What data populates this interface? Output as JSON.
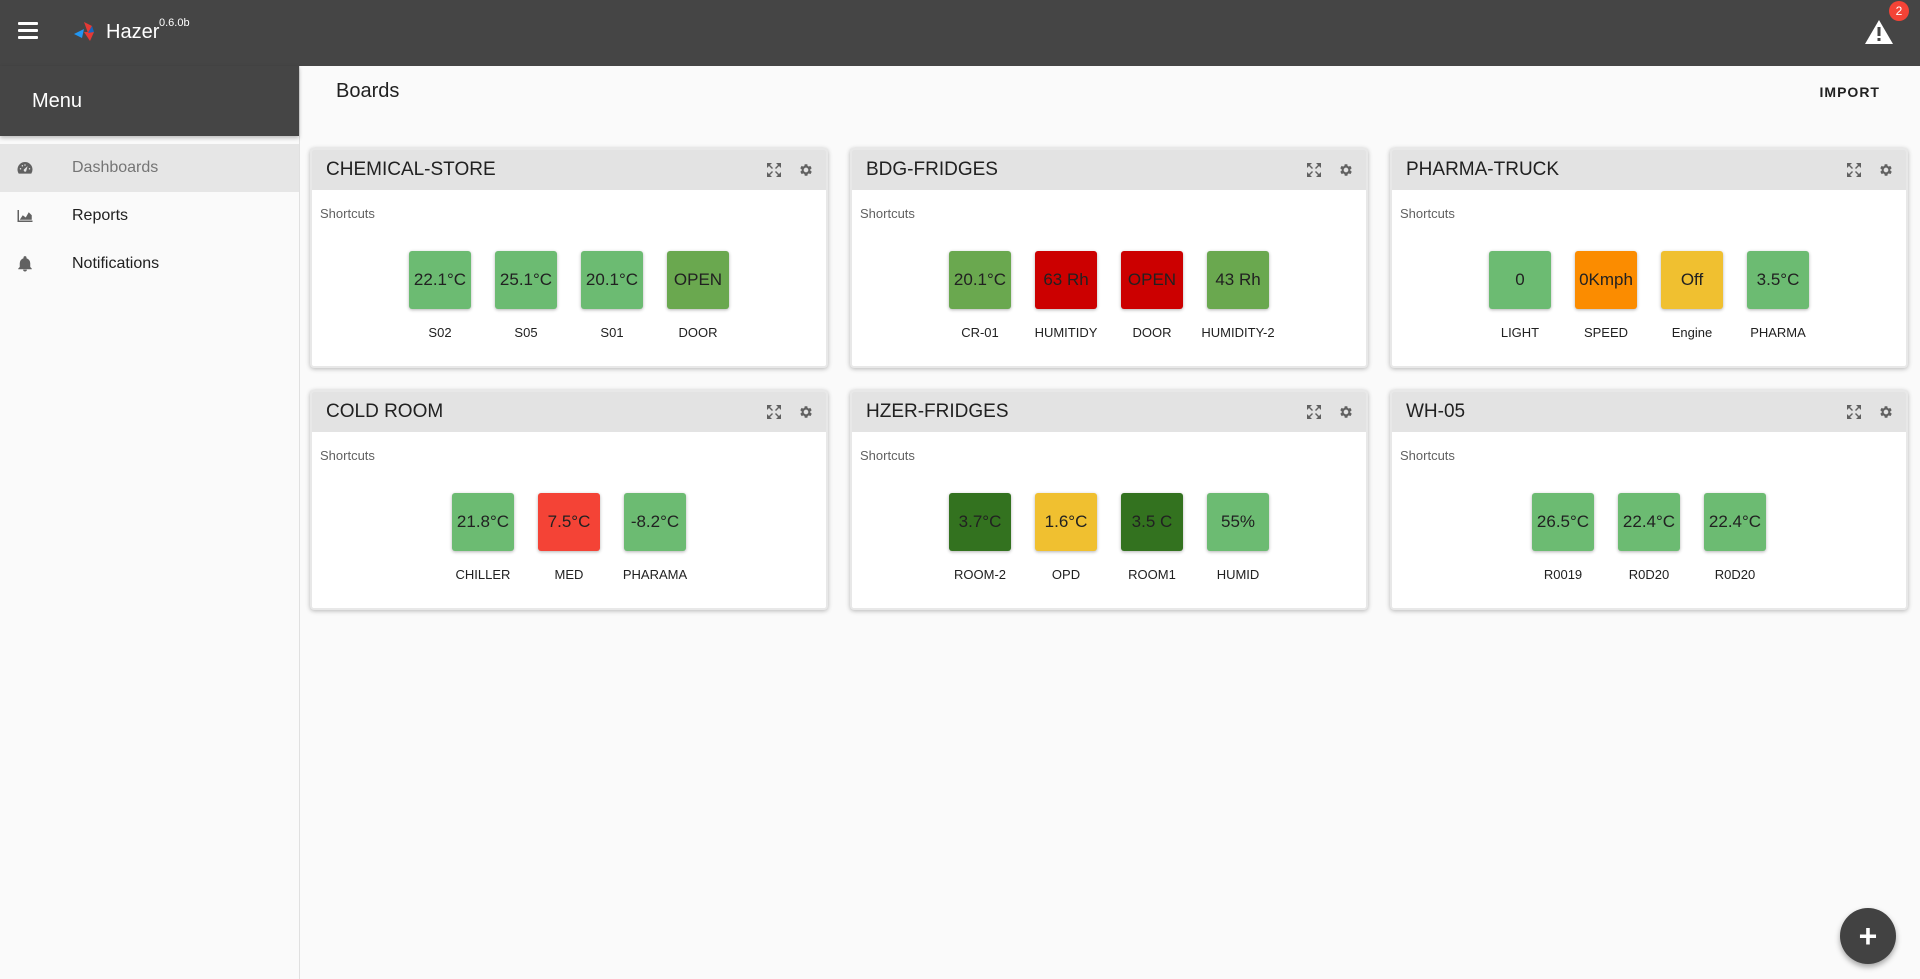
{
  "app": {
    "title": "Hazer",
    "version": "0.6.0b",
    "alert_count": "2"
  },
  "sidebar": {
    "menu_title": "Menu",
    "items": [
      {
        "label": "Dashboards",
        "icon": "dashboard-icon",
        "active": true
      },
      {
        "label": "Reports",
        "icon": "chart-icon",
        "active": false
      },
      {
        "label": "Notifications",
        "icon": "bell-icon",
        "active": false
      }
    ]
  },
  "main": {
    "page_title": "Boards",
    "import_label": "IMPORT",
    "shortcuts_label": "Shortcuts"
  },
  "colors": {
    "green": "#6cbb72",
    "dark_green": "#33721f",
    "mid_green": "#6aa84f",
    "red": "#cc0000",
    "bright_red": "#f44336",
    "orange": "#fb8c00",
    "yellow": "#f0c030"
  },
  "boards": [
    {
      "title": "CHEMICAL-STORE",
      "tiles": [
        {
          "value": "22.1°C",
          "label": "S02",
          "color": "#6cbb72"
        },
        {
          "value": "25.1°C",
          "label": "S05",
          "color": "#6cbb72"
        },
        {
          "value": "20.1°C",
          "label": "S01",
          "color": "#6cbb72"
        },
        {
          "value": "OPEN",
          "label": "DOOR",
          "color": "#6aa84f"
        }
      ]
    },
    {
      "title": "BDG-FRIDGES",
      "tiles": [
        {
          "value": "20.1°C",
          "label": "CR-01",
          "color": "#6aa84f"
        },
        {
          "value": "63 Rh",
          "label": "HUMITIDY",
          "color": "#cc0000"
        },
        {
          "value": "OPEN",
          "label": "DOOR",
          "color": "#cc0000"
        },
        {
          "value": "43 Rh",
          "label": "HUMIDITY-2",
          "color": "#6aa84f"
        }
      ]
    },
    {
      "title": "PHARMA-TRUCK",
      "tiles": [
        {
          "value": "0",
          "label": "LIGHT",
          "color": "#6cbb72"
        },
        {
          "value": "0Kmph",
          "label": "SPEED",
          "color": "#fb8c00"
        },
        {
          "value": "Off",
          "label": "Engine",
          "color": "#f0c030"
        },
        {
          "value": "3.5°C",
          "label": "PHARMA",
          "color": "#6cbb72"
        }
      ]
    },
    {
      "title": "COLD ROOM",
      "tiles": [
        {
          "value": "21.8°C",
          "label": "CHILLER",
          "color": "#6cbb72"
        },
        {
          "value": "7.5°C",
          "label": "MED",
          "color": "#f44336"
        },
        {
          "value": "-8.2°C",
          "label": "PHARAMA",
          "color": "#6cbb72"
        }
      ]
    },
    {
      "title": "HZER-FRIDGES",
      "tiles": [
        {
          "value": "3.7°C",
          "label": "ROOM-2",
          "color": "#33721f"
        },
        {
          "value": "1.6°C",
          "label": "OPD",
          "color": "#f0c030"
        },
        {
          "value": "3.5 C",
          "label": "ROOM1",
          "color": "#33721f"
        },
        {
          "value": "55%",
          "label": "HUMID",
          "color": "#6cbb72"
        }
      ]
    },
    {
      "title": "WH-05",
      "tiles": [
        {
          "value": "26.5°C",
          "label": "R0019",
          "color": "#6cbb72"
        },
        {
          "value": "22.4°C",
          "label": "R0D20",
          "color": "#6cbb72"
        },
        {
          "value": "22.4°C",
          "label": "R0D20",
          "color": "#6cbb72"
        }
      ]
    }
  ]
}
